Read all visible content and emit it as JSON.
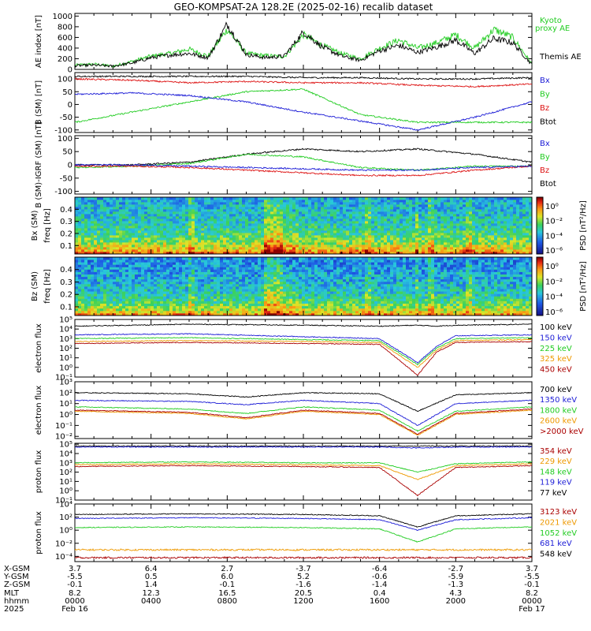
{
  "title": "GEO-KOMPSAT-2A 128.2E (2025-02-16) recalib dataset",
  "chart_data": [
    {
      "type": "line",
      "id": "ae",
      "ylabel": "AE index [nT]",
      "yticks": [
        0,
        200,
        400,
        600,
        800,
        1000
      ],
      "ylim": [
        0,
        1050
      ],
      "log": false,
      "legend": [
        "Kyoto proxy AE",
        "Themis AE"
      ],
      "legend_colors": [
        "#22cc22",
        "#000000"
      ],
      "series": [
        {
          "name": "Kyoto proxy AE",
          "color": "#22cc22",
          "x": [
            0,
            1,
            2,
            3,
            4,
            5,
            6,
            7,
            8,
            9,
            10,
            11,
            12,
            13,
            14,
            15,
            16,
            17,
            18,
            19,
            20,
            21,
            22,
            23,
            24
          ],
          "values": [
            80,
            100,
            60,
            150,
            250,
            300,
            380,
            250,
            750,
            300,
            260,
            240,
            650,
            450,
            300,
            200,
            400,
            550,
            400,
            500,
            650,
            400,
            750,
            600,
            100
          ]
        },
        {
          "name": "Themis AE",
          "color": "#000000",
          "x": [
            0,
            1,
            2,
            3,
            4,
            5,
            6,
            7,
            8,
            9,
            10,
            11,
            12,
            13,
            14,
            15,
            16,
            17,
            18,
            19,
            20,
            21,
            22,
            23,
            24
          ],
          "values": [
            70,
            80,
            60,
            120,
            220,
            270,
            300,
            220,
            850,
            280,
            220,
            250,
            700,
            420,
            250,
            170,
            350,
            450,
            320,
            420,
            550,
            300,
            580,
            500,
            90
          ]
        }
      ]
    },
    {
      "type": "line",
      "id": "bsm",
      "ylabel": "B (SM) [nT]",
      "yticks": [
        -100,
        -50,
        0,
        50,
        100
      ],
      "ylim": [
        -110,
        125
      ],
      "log": false,
      "legend": [
        "Bx",
        "By",
        "Bz",
        "Btot"
      ],
      "legend_colors": [
        "#1c1cd6",
        "#22cc22",
        "#dd1111",
        "#000000"
      ],
      "series": [
        {
          "name": "Btot",
          "color": "#000000",
          "x": [
            0,
            3,
            6,
            9,
            12,
            15,
            18,
            21,
            24
          ],
          "values": [
            110,
            110,
            110,
            110,
            105,
            105,
            100,
            100,
            105
          ]
        },
        {
          "name": "By",
          "color": "#22cc22",
          "x": [
            0,
            3,
            6,
            9,
            12,
            15,
            18,
            21,
            24
          ],
          "values": [
            -70,
            -30,
            10,
            50,
            60,
            -40,
            -70,
            -70,
            -70
          ]
        },
        {
          "name": "Bz",
          "color": "#dd1111",
          "x": [
            0,
            3,
            6,
            9,
            12,
            15,
            18,
            21,
            24
          ],
          "values": [
            100,
            95,
            85,
            90,
            85,
            85,
            75,
            70,
            80
          ]
        },
        {
          "name": "Bx",
          "color": "#1c1cd6",
          "x": [
            0,
            3,
            6,
            9,
            12,
            15,
            18,
            21,
            24
          ],
          "values": [
            40,
            45,
            35,
            10,
            -30,
            -65,
            -100,
            -50,
            10
          ]
        }
      ]
    },
    {
      "type": "line",
      "id": "bsmigrf",
      "ylabel": "B (SM)-IGRF (SM) [nT]",
      "yticks": [
        -100,
        -50,
        0,
        50,
        100
      ],
      "ylim": [
        -110,
        110
      ],
      "log": false,
      "legend": [
        "Bx",
        "By",
        "Bz",
        "Btot"
      ],
      "legend_colors": [
        "#1c1cd6",
        "#22cc22",
        "#dd1111",
        "#000000"
      ],
      "series": [
        {
          "name": "Btot",
          "color": "#000000",
          "x": [
            0,
            3,
            6,
            9,
            12,
            15,
            18,
            21,
            24
          ],
          "values": [
            0,
            0,
            10,
            40,
            60,
            50,
            60,
            40,
            10
          ]
        },
        {
          "name": "By",
          "color": "#22cc22",
          "x": [
            0,
            3,
            6,
            9,
            12,
            15,
            18,
            21,
            24
          ],
          "values": [
            -10,
            -5,
            5,
            40,
            30,
            -10,
            -20,
            -5,
            -5
          ]
        },
        {
          "name": "Bz",
          "color": "#dd1111",
          "x": [
            0,
            3,
            6,
            9,
            12,
            15,
            18,
            21,
            24
          ],
          "values": [
            -5,
            -5,
            -10,
            -20,
            -30,
            -40,
            -40,
            -20,
            -5
          ]
        },
        {
          "name": "Bx",
          "color": "#1c1cd6",
          "x": [
            0,
            3,
            6,
            9,
            12,
            15,
            18,
            21,
            24
          ],
          "values": [
            0,
            0,
            -5,
            -10,
            -15,
            -20,
            -20,
            -10,
            -5
          ]
        }
      ]
    },
    {
      "type": "heatmap",
      "id": "bxspec",
      "ylabel": "Bx (SM)",
      "ylabel2": "freq [Hz]",
      "yticks": [
        0.1,
        0.2,
        0.3,
        0.4
      ],
      "ylim": [
        0.03,
        0.5
      ],
      "colorbar_label": "PSD [nT²/Hz]",
      "colorbar_ticks": [
        "10⁰",
        "10⁻²",
        "10⁻⁴",
        "10⁻⁶"
      ]
    },
    {
      "type": "heatmap",
      "id": "bzspec",
      "ylabel": "Bz (SM)",
      "ylabel2": "freq [Hz]",
      "yticks": [
        0.1,
        0.2,
        0.3,
        0.4
      ],
      "ylim": [
        0.03,
        0.5
      ],
      "colorbar_label": "PSD [nT²/Hz]",
      "colorbar_ticks": [
        "10⁰",
        "10⁻²",
        "10⁻⁴",
        "10⁻⁶"
      ]
    },
    {
      "type": "line",
      "id": "elec1",
      "ylabel": "electron flux",
      "yticks": [
        "10⁻¹",
        "10⁰",
        "10¹",
        "10²",
        "10³",
        "10⁴",
        "10⁵"
      ],
      "ylim": [
        -1,
        5
      ],
      "log": true,
      "legend": [
        "100 keV",
        "150 keV",
        "225 keV",
        "325 keV",
        "450 keV"
      ],
      "legend_colors": [
        "#000000",
        "#1c1cd6",
        "#22cc22",
        "#ee9900",
        "#aa0000"
      ],
      "series": [
        {
          "name": "100 keV",
          "color": "#000000",
          "x": [
            0,
            6,
            12,
            16,
            18,
            19,
            20,
            24
          ],
          "values": [
            4.3,
            4.5,
            4.4,
            4.3,
            4.4,
            4.3,
            4.4,
            4.5
          ]
        },
        {
          "name": "150 keV",
          "color": "#1c1cd6",
          "x": [
            0,
            6,
            12,
            16,
            18,
            19,
            20,
            24
          ],
          "values": [
            3.4,
            3.5,
            3.2,
            3.0,
            0.5,
            2.2,
            3.3,
            3.4
          ]
        },
        {
          "name": "225 keV",
          "color": "#22cc22",
          "x": [
            0,
            6,
            12,
            16,
            18,
            19,
            20,
            24
          ],
          "values": [
            3.0,
            3.1,
            2.9,
            2.8,
            0.3,
            2.0,
            3.0,
            3.1
          ]
        },
        {
          "name": "325 keV",
          "color": "#ee9900",
          "x": [
            0,
            6,
            12,
            16,
            18,
            19,
            20,
            24
          ],
          "values": [
            2.7,
            2.8,
            2.7,
            2.6,
            0.0,
            1.8,
            2.8,
            2.9
          ]
        },
        {
          "name": "450 keV",
          "color": "#aa0000",
          "x": [
            0,
            6,
            12,
            16,
            18,
            19,
            20,
            24
          ],
          "values": [
            2.5,
            2.6,
            2.5,
            2.4,
            -0.8,
            1.6,
            2.6,
            2.7
          ]
        }
      ]
    },
    {
      "type": "line",
      "id": "elec2",
      "ylabel": "electron flux",
      "yticks": [
        "10⁻²",
        "10⁻¹",
        "10⁰",
        "10¹",
        "10²",
        "10³"
      ],
      "ylim": [
        -2.2,
        3
      ],
      "log": true,
      "legend": [
        "700 keV",
        "1350 keV",
        "1800 keV",
        "2600 keV",
        ">2000 keV"
      ],
      "legend_colors": [
        "#000000",
        "#1c1cd6",
        "#22cc22",
        "#ee9900",
        "#aa0000"
      ],
      "series": [
        {
          "name": "700 keV",
          "color": "#000000",
          "x": [
            0,
            6,
            9,
            12,
            16,
            18,
            20,
            24
          ],
          "values": [
            2.0,
            1.9,
            1.6,
            2.0,
            1.9,
            0.3,
            1.8,
            2.0
          ]
        },
        {
          "name": "1350 keV",
          "color": "#1c1cd6",
          "x": [
            0,
            6,
            9,
            12,
            16,
            18,
            20,
            24
          ],
          "values": [
            1.3,
            1.2,
            0.9,
            1.3,
            1.0,
            -1.0,
            1.0,
            1.3
          ]
        },
        {
          "name": "1800 keV",
          "color": "#22cc22",
          "x": [
            0,
            6,
            9,
            12,
            16,
            18,
            20,
            24
          ],
          "values": [
            0.7,
            0.5,
            0.1,
            0.7,
            0.4,
            -1.5,
            0.3,
            0.7
          ]
        },
        {
          "name": "2600 keV",
          "color": "#ee9900",
          "x": [
            0,
            6,
            9,
            12,
            16,
            18,
            20,
            24
          ],
          "values": [
            0.3,
            0.1,
            -0.4,
            0.3,
            0.0,
            -1.9,
            0.0,
            0.4
          ]
        },
        {
          "name": ">2000 keV",
          "color": "#aa0000",
          "x": [
            0,
            6,
            9,
            12,
            16,
            18,
            20,
            24
          ],
          "values": [
            0.4,
            0.2,
            -0.3,
            0.4,
            0.1,
            -1.8,
            0.1,
            0.5
          ]
        }
      ]
    },
    {
      "type": "line",
      "id": "prot1",
      "ylabel": "proton flux",
      "yticks": [
        "10⁻¹",
        "10⁰",
        "10¹",
        "10²",
        "10³",
        "10⁴",
        "10⁵"
      ],
      "ylim": [
        -1,
        5.1
      ],
      "log": true,
      "legend": [
        "354 keV",
        "229 keV",
        "148 keV",
        "119 keV",
        "77 keV"
      ],
      "legend_colors": [
        "#aa0000",
        "#ee9900",
        "#22cc22",
        "#1c1cd6",
        "#000000"
      ],
      "series": [
        {
          "name": "77 keV",
          "color": "#000000",
          "x": [
            0,
            6,
            12,
            16,
            18,
            20,
            24
          ],
          "values": [
            4.8,
            4.8,
            4.8,
            4.8,
            4.8,
            4.8,
            4.8
          ]
        },
        {
          "name": "119 keV",
          "color": "#1c1cd6",
          "x": [
            0,
            6,
            12,
            16,
            18,
            20,
            24
          ],
          "values": [
            4.7,
            4.7,
            4.7,
            4.7,
            4.6,
            4.7,
            4.7
          ]
        },
        {
          "name": "148 keV",
          "color": "#22cc22",
          "x": [
            0,
            6,
            12,
            16,
            18,
            20,
            24
          ],
          "values": [
            3.0,
            3.1,
            3.0,
            3.0,
            2.0,
            2.9,
            3.1
          ]
        },
        {
          "name": "229 keV",
          "color": "#ee9900",
          "x": [
            0,
            6,
            12,
            16,
            18,
            20,
            24
          ],
          "values": [
            2.8,
            2.9,
            2.8,
            2.7,
            1.2,
            2.7,
            2.9
          ]
        },
        {
          "name": "354 keV",
          "color": "#aa0000",
          "x": [
            0,
            6,
            12,
            16,
            18,
            20,
            24
          ],
          "values": [
            2.6,
            2.7,
            2.6,
            2.5,
            -0.5,
            2.5,
            2.7
          ]
        }
      ]
    },
    {
      "type": "line",
      "id": "prot2",
      "ylabel": "proton flux",
      "yticks": [
        "10⁻⁴",
        "10⁻²",
        "10⁰",
        "10²",
        "10⁴"
      ],
      "ylim": [
        -4.8,
        4
      ],
      "log": true,
      "legend": [
        "3123 keV",
        "2021 keV",
        "1052 keV",
        "681 keV",
        "548 keV"
      ],
      "legend_colors": [
        "#aa0000",
        "#ee9900",
        "#22cc22",
        "#1c1cd6",
        "#000000"
      ],
      "series": [
        {
          "name": "548 keV",
          "color": "#000000",
          "x": [
            0,
            6,
            12,
            16,
            18,
            20,
            24
          ],
          "values": [
            2.4,
            2.5,
            2.4,
            2.2,
            0.5,
            2.2,
            2.5
          ]
        },
        {
          "name": "681 keV",
          "color": "#1c1cd6",
          "x": [
            0,
            6,
            12,
            16,
            18,
            20,
            24
          ],
          "values": [
            1.8,
            1.9,
            1.8,
            1.6,
            0.0,
            1.6,
            1.9
          ]
        },
        {
          "name": "1052 keV",
          "color": "#22cc22",
          "x": [
            0,
            6,
            12,
            16,
            18,
            20,
            24
          ],
          "values": [
            0.4,
            0.5,
            0.4,
            0.2,
            -1.8,
            0.2,
            0.5
          ]
        },
        {
          "name": "2021 keV",
          "color": "#ee9900",
          "x": [
            0,
            6,
            12,
            16,
            18,
            20,
            24
          ],
          "values": [
            -3.0,
            -3.0,
            -3.0,
            -3.0,
            -3.0,
            -3.0,
            -3.0
          ]
        },
        {
          "name": "3123 keV",
          "color": "#aa0000",
          "x": [
            0,
            6,
            12,
            16,
            18,
            20,
            24
          ],
          "values": [
            -4.2,
            -4.2,
            -4.2,
            -4.2,
            -4.2,
            -4.2,
            -4.2
          ]
        }
      ]
    }
  ],
  "footer": {
    "row_labels": [
      "X-GSM",
      "Y-GSM",
      "Z-GSM",
      "MLT",
      "hhmm",
      "2025"
    ],
    "columns": [
      [
        "3.7",
        "-5.5",
        "-0.1",
        "8.2",
        "0000",
        "Feb 16"
      ],
      [
        "6.4",
        "0.5",
        "1.4",
        "12.3",
        "0400",
        ""
      ],
      [
        "2.7",
        "6.0",
        "-0.1",
        "16.5",
        "0800",
        ""
      ],
      [
        "-3.7",
        "5.2",
        "-1.6",
        "20.5",
        "1200",
        ""
      ],
      [
        "-6.4",
        "-0.6",
        "-1.4",
        "0.4",
        "1600",
        ""
      ],
      [
        "-2.7",
        "-5.9",
        "-1.3",
        "4.3",
        "2000",
        ""
      ],
      [
        "3.7",
        "-5.5",
        "-0.1",
        "8.2",
        "0000",
        "Feb 17"
      ]
    ]
  }
}
